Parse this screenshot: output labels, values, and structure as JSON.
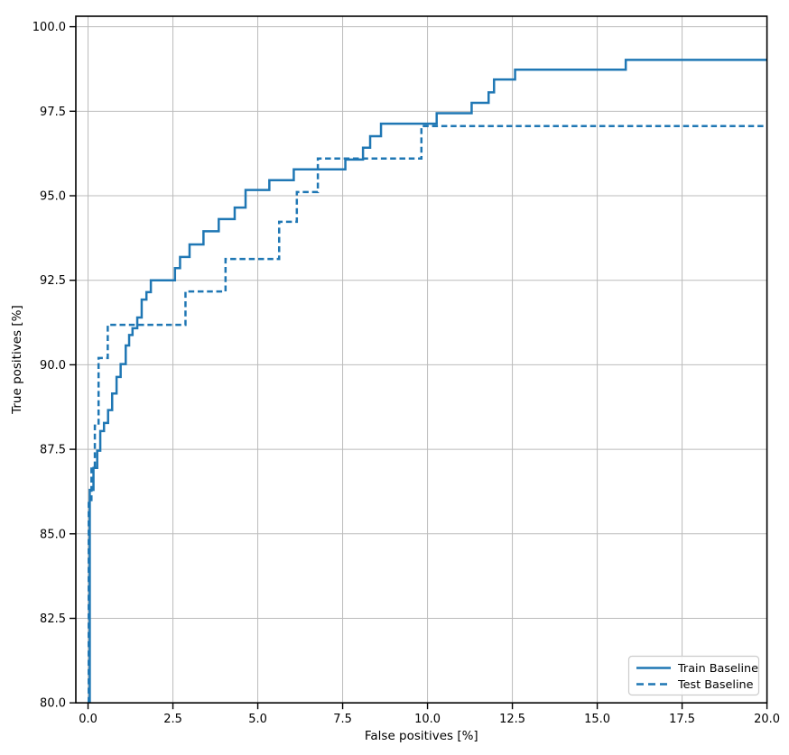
{
  "figure": {
    "background": "#ffffff"
  },
  "colors": {
    "line": "#1f77b4",
    "grid": "#bbbbbb",
    "spine": "#000000",
    "tick": "#000000",
    "text": "#000000",
    "legend_border": "#cccccc",
    "legend_background": "#ffffff"
  },
  "chart_data": {
    "type": "line",
    "subtype": "step-roc-curve",
    "title": "",
    "xlabel": "False positives [%]",
    "ylabel": "True positives [%]",
    "xlim": [
      -0.36,
      20.0
    ],
    "ylim": [
      80.0,
      100.31
    ],
    "grid": true,
    "legend_position": "lower right",
    "x_ticks": [
      0.0,
      2.5,
      5.0,
      7.5,
      10.0,
      12.5,
      15.0,
      17.5,
      20.0
    ],
    "x_tick_labels": [
      "0.0",
      "2.5",
      "5.0",
      "7.5",
      "10.0",
      "12.5",
      "15.0",
      "17.5",
      "20.0"
    ],
    "y_ticks": [
      80.0,
      82.5,
      85.0,
      87.5,
      90.0,
      92.5,
      95.0,
      97.5,
      100.0
    ],
    "y_tick_labels": [
      "80.0",
      "82.5",
      "85.0",
      "87.5",
      "90.0",
      "92.5",
      "95.0",
      "97.5",
      "100.0"
    ],
    "series": [
      {
        "name": "Train Baseline",
        "style": "solid",
        "color": "#1f77b4",
        "line_width": 2.5,
        "step_vertices": [
          [
            0.05,
            80.0
          ],
          [
            0.05,
            86.3
          ],
          [
            0.16,
            86.3
          ],
          [
            0.16,
            86.95
          ],
          [
            0.27,
            86.95
          ],
          [
            0.27,
            87.46
          ],
          [
            0.36,
            87.46
          ],
          [
            0.36,
            88.04
          ],
          [
            0.47,
            88.04
          ],
          [
            0.47,
            88.28
          ],
          [
            0.59,
            88.28
          ],
          [
            0.59,
            88.66
          ],
          [
            0.71,
            88.66
          ],
          [
            0.71,
            89.15
          ],
          [
            0.84,
            89.15
          ],
          [
            0.84,
            89.64
          ],
          [
            0.96,
            89.64
          ],
          [
            0.96,
            90.02
          ],
          [
            1.11,
            90.02
          ],
          [
            1.11,
            90.57
          ],
          [
            1.21,
            90.57
          ],
          [
            1.21,
            90.88
          ],
          [
            1.31,
            90.88
          ],
          [
            1.31,
            91.08
          ],
          [
            1.45,
            91.08
          ],
          [
            1.45,
            91.4
          ],
          [
            1.58,
            91.4
          ],
          [
            1.58,
            91.93
          ],
          [
            1.72,
            91.93
          ],
          [
            1.72,
            92.15
          ],
          [
            1.85,
            92.15
          ],
          [
            1.85,
            92.5
          ],
          [
            2.56,
            92.5
          ],
          [
            2.56,
            92.86
          ],
          [
            2.71,
            92.86
          ],
          [
            2.71,
            93.19
          ],
          [
            2.99,
            93.19
          ],
          [
            2.99,
            93.56
          ],
          [
            3.4,
            93.56
          ],
          [
            3.4,
            93.95
          ],
          [
            3.85,
            93.95
          ],
          [
            3.85,
            94.31
          ],
          [
            4.32,
            94.31
          ],
          [
            4.32,
            94.65
          ],
          [
            4.64,
            94.65
          ],
          [
            4.64,
            95.17
          ],
          [
            5.34,
            95.17
          ],
          [
            5.34,
            95.46
          ],
          [
            6.06,
            95.46
          ],
          [
            6.06,
            95.78
          ],
          [
            7.58,
            95.78
          ],
          [
            7.58,
            96.07
          ],
          [
            8.1,
            96.07
          ],
          [
            8.1,
            96.42
          ],
          [
            8.31,
            96.42
          ],
          [
            8.31,
            96.76
          ],
          [
            8.63,
            96.76
          ],
          [
            8.63,
            97.13
          ],
          [
            10.27,
            97.13
          ],
          [
            10.27,
            97.44
          ],
          [
            11.3,
            97.44
          ],
          [
            11.3,
            97.75
          ],
          [
            11.8,
            97.75
          ],
          [
            11.8,
            98.06
          ],
          [
            11.96,
            98.06
          ],
          [
            11.96,
            98.44
          ],
          [
            12.58,
            98.44
          ],
          [
            12.58,
            98.73
          ],
          [
            15.84,
            98.73
          ],
          [
            15.84,
            99.02
          ],
          [
            20.0,
            99.02
          ]
        ]
      },
      {
        "name": "Test Baseline",
        "style": "dashed",
        "color": "#1f77b4",
        "line_width": 2.5,
        "dash_pattern": [
          6.5,
          3.8
        ],
        "step_vertices": [
          [
            0.02,
            80.0
          ],
          [
            0.02,
            86.0
          ],
          [
            0.1,
            86.0
          ],
          [
            0.1,
            87.0
          ],
          [
            0.2,
            87.0
          ],
          [
            0.2,
            88.2
          ],
          [
            0.31,
            88.2
          ],
          [
            0.31,
            90.2
          ],
          [
            0.58,
            90.2
          ],
          [
            0.58,
            91.18
          ],
          [
            2.87,
            91.18
          ],
          [
            2.87,
            92.17
          ],
          [
            4.05,
            92.17
          ],
          [
            4.05,
            93.13
          ],
          [
            5.63,
            93.13
          ],
          [
            5.63,
            94.23
          ],
          [
            6.15,
            94.23
          ],
          [
            6.15,
            95.11
          ],
          [
            6.77,
            95.11
          ],
          [
            6.77,
            96.1
          ],
          [
            9.82,
            96.1
          ],
          [
            9.82,
            97.06
          ],
          [
            20.0,
            97.06
          ]
        ]
      }
    ]
  },
  "legend": {
    "items": [
      {
        "label": "Train Baseline",
        "style": "solid"
      },
      {
        "label": "Test Baseline",
        "style": "dashed"
      }
    ]
  }
}
